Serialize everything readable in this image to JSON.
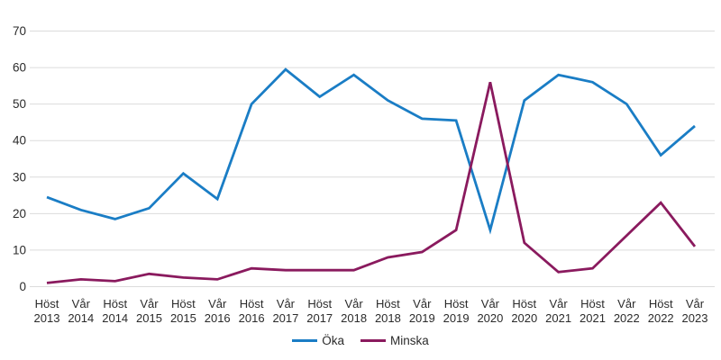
{
  "chart_data": {
    "type": "line",
    "categories": [
      "Höst 2013",
      "Vår 2014",
      "Höst 2014",
      "Vår 2015",
      "Höst 2015",
      "Vår 2016",
      "Höst 2016",
      "Vår 2017",
      "Höst 2017",
      "Vår 2018",
      "Höst 2018",
      "Vår 2019",
      "Höst 2019",
      "Vår 2020",
      "Höst 2020",
      "Vår 2021",
      "Höst 2021",
      "Vår 2022",
      "Höst 2022",
      "Vår 2023"
    ],
    "series": [
      {
        "name": "Öka",
        "color": "#1a7dc5",
        "values": [
          24.5,
          21,
          18.5,
          21.5,
          31,
          24,
          50,
          59.5,
          52,
          58,
          51,
          46,
          45.5,
          15.5,
          51,
          58,
          56,
          50,
          36,
          44
        ]
      },
      {
        "name": "Minska",
        "color": "#8a1a5e",
        "values": [
          1,
          2,
          1.5,
          3.5,
          2.5,
          2,
          5,
          4.5,
          4.5,
          4.5,
          8,
          9.5,
          15.5,
          56,
          12,
          4,
          5,
          14,
          23,
          11
        ]
      }
    ],
    "ylim": [
      0,
      70
    ],
    "yticks": [
      0,
      10,
      20,
      30,
      40,
      50,
      60,
      70
    ],
    "grid": "horizontal",
    "gridline_color": "#dcdcdc",
    "text_color": "#2b2b2b",
    "background": "#ffffff",
    "legend_position": "bottom-center"
  }
}
